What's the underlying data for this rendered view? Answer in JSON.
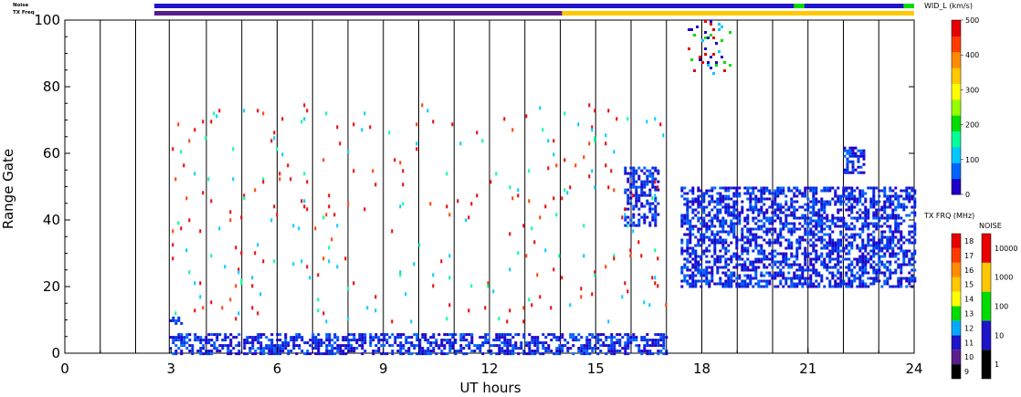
{
  "strip_labels": {
    "noise": "Noise",
    "tx_freq": "TX Freq"
  },
  "chart_data": {
    "type": "heatmap",
    "xlabel": "UT hours",
    "ylabel": "Range Gate",
    "xlim": [
      0,
      24
    ],
    "ylim": [
      0,
      100
    ],
    "x_ticks": [
      "0",
      "3",
      "6",
      "9",
      "12",
      "15",
      "18",
      "21",
      "24"
    ],
    "y_ticks": [
      "0",
      "20",
      "40",
      "60",
      "80",
      "100"
    ],
    "scan_boundaries_ut": [
      1,
      2,
      2.95,
      4,
      5,
      6,
      7,
      8,
      9,
      10,
      11,
      12,
      13,
      14,
      15,
      16,
      17,
      18,
      19,
      20,
      21,
      22,
      23
    ],
    "data_gap_ut": [
      17.0,
      17.3
    ],
    "colorbars": [
      {
        "title": "WID_L (km/s)",
        "range": [
          0,
          500
        ],
        "tick_labels": [
          "0",
          "100",
          "200",
          "300",
          "400",
          "500"
        ],
        "colors": [
          "#1e00c8",
          "#0064ff",
          "#00c8ff",
          "#00ff96",
          "#00dc00",
          "#96ff00",
          "#ffff00",
          "#ffc800",
          "#ff8c00",
          "#ff3c00",
          "#e60000"
        ]
      },
      {
        "title": "TX FRQ (MHz)",
        "tick_labels": [
          "9",
          "10",
          "11",
          "12",
          "13",
          "14",
          "15",
          "16",
          "17",
          "18"
        ],
        "colors": [
          "#000000",
          "#5a1e8c",
          "#1e14c8",
          "#00aaff",
          "#00dc00",
          "#ffff00",
          "#ffc800",
          "#ff8c00",
          "#ff3c00",
          "#e60000"
        ]
      },
      {
        "title": "NOISE",
        "tick_labels": [
          "1",
          "10",
          "100",
          "1000",
          "10000"
        ],
        "colors": [
          "#000000",
          "#1e14c8",
          "#00dc00",
          "#ffc800",
          "#e60000"
        ]
      }
    ],
    "noise_strip": {
      "dominant": "#1e14c8",
      "segments": [
        {
          "ut": [
            20.6,
            20.9
          ],
          "color": "#00dc00"
        },
        {
          "ut": [
            23.7,
            24
          ],
          "color": "#00dc00"
        }
      ]
    },
    "txfreq_strip": {
      "segments": [
        {
          "ut": [
            0,
            14.05
          ],
          "color": "#5a1e8c"
        },
        {
          "ut": [
            14.05,
            24
          ],
          "color": "#ffc800"
        }
      ]
    },
    "echo_regions": [
      {
        "ut": [
          2.95,
          17.0
        ],
        "gates": [
          0,
          6
        ],
        "dominant_width": "low (0-100 km/s)",
        "note": "near-range low-width echoes"
      },
      {
        "ut": [
          2.95,
          3.3
        ],
        "gates": [
          9,
          11
        ],
        "dominant_width": "low"
      },
      {
        "ut": [
          15.8,
          16.8
        ],
        "gates": [
          38,
          56
        ],
        "dominant_width": "low"
      },
      {
        "ut": [
          17.4,
          24
        ],
        "gates": [
          20,
          50
        ],
        "dominant_width": "low (0-100 km/s)",
        "note": "main ionospheric backscatter band"
      },
      {
        "ut": [
          17.6,
          18.8
        ],
        "gates": [
          84,
          100
        ],
        "dominant_width": "mixed"
      },
      {
        "ut": [
          22.0,
          22.6
        ],
        "gates": [
          54,
          62
        ],
        "dominant_width": "low"
      },
      {
        "ut": [
          2.95,
          17.0
        ],
        "gates": [
          10,
          75
        ],
        "dominant_width": "high (400-500 km/s)",
        "note": "sparse scattered high-width points"
      }
    ]
  }
}
